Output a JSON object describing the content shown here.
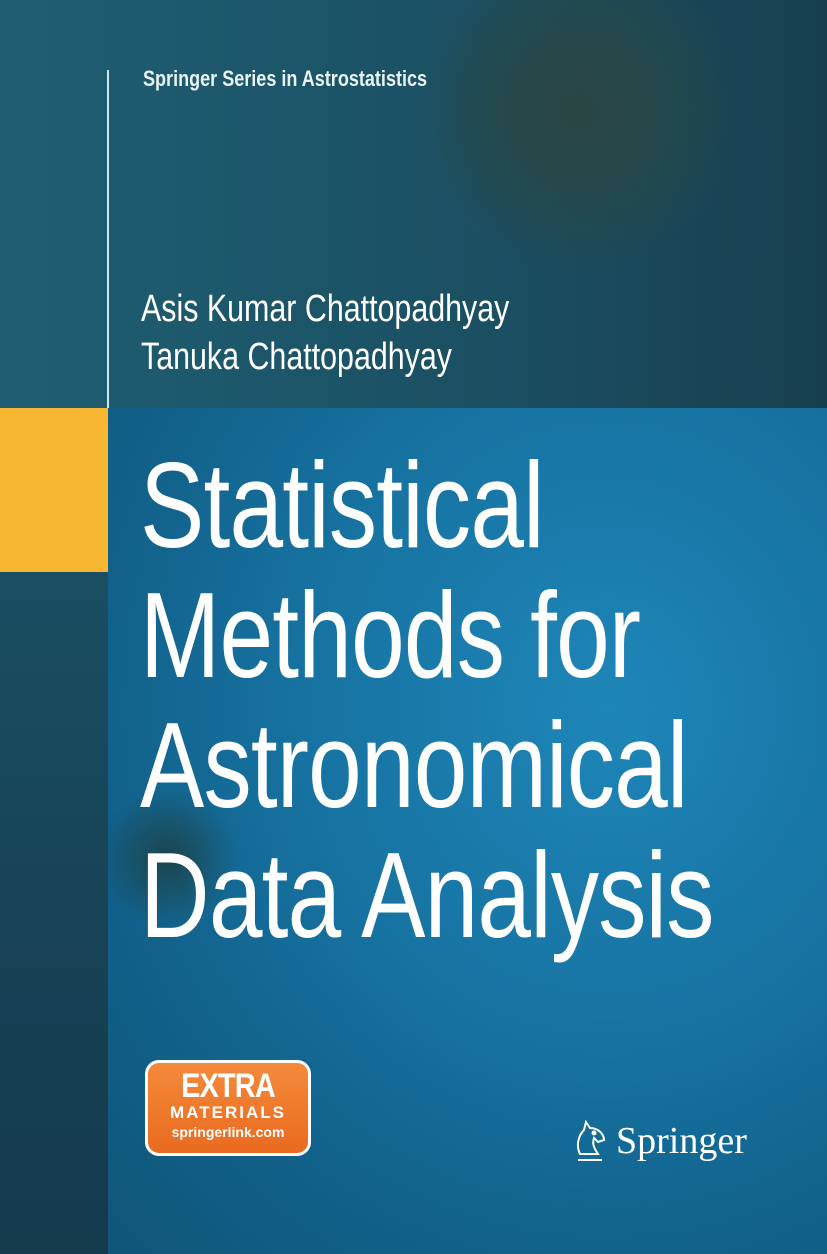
{
  "series": "Springer Series in Astrostatistics",
  "authors": [
    "Asis Kumar Chattopadhyay",
    "Tanuka Chattopadhyay"
  ],
  "title_lines": [
    "Statistical",
    "Methods for",
    "Astronomical",
    "Data Analysis"
  ],
  "badge": {
    "line1": "EXTRA",
    "line2": "MATERIALS",
    "line3": "springerlink.com"
  },
  "publisher": "Springer",
  "colors": {
    "accent_yellow": "#f8b730",
    "badge_orange": "#f07a2c",
    "title_blue": "#1774a3"
  }
}
